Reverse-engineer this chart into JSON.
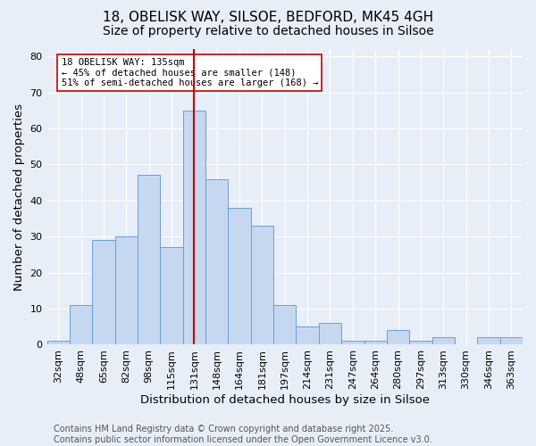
{
  "title": "18, OBELISK WAY, SILSOE, BEDFORD, MK45 4GH",
  "subtitle": "Size of property relative to detached houses in Silsoe",
  "xlabel": "Distribution of detached houses by size in Silsoe",
  "ylabel": "Number of detached properties",
  "categories": [
    "32sqm",
    "48sqm",
    "65sqm",
    "82sqm",
    "98sqm",
    "115sqm",
    "131sqm",
    "148sqm",
    "164sqm",
    "181sqm",
    "197sqm",
    "214sqm",
    "231sqm",
    "247sqm",
    "264sqm",
    "280sqm",
    "297sqm",
    "313sqm",
    "330sqm",
    "346sqm",
    "363sqm"
  ],
  "values": [
    1,
    11,
    29,
    30,
    47,
    27,
    65,
    46,
    38,
    33,
    11,
    5,
    6,
    1,
    1,
    4,
    1,
    2,
    0,
    2,
    2
  ],
  "bar_color": "#c5d8f0",
  "bar_edge_color": "#6a9fd8",
  "vline_index": 6,
  "vline_color": "#cc0000",
  "annotation_text": "18 OBELISK WAY: 135sqm\n← 45% of detached houses are smaller (148)\n51% of semi-detached houses are larger (168) →",
  "annotation_box_color": "#ffffff",
  "annotation_box_edge": "#cc0000",
  "ylim": [
    0,
    82
  ],
  "yticks": [
    0,
    10,
    20,
    30,
    40,
    50,
    60,
    70,
    80
  ],
  "footer": "Contains HM Land Registry data © Crown copyright and database right 2025.\nContains public sector information licensed under the Open Government Licence v3.0.",
  "background_color": "#e8eef8",
  "grid_color": "#ffffff",
  "title_fontsize": 11,
  "subtitle_fontsize": 10,
  "axis_label_fontsize": 9.5,
  "tick_fontsize": 8,
  "footer_fontsize": 7,
  "annotation_fontsize": 7.5
}
